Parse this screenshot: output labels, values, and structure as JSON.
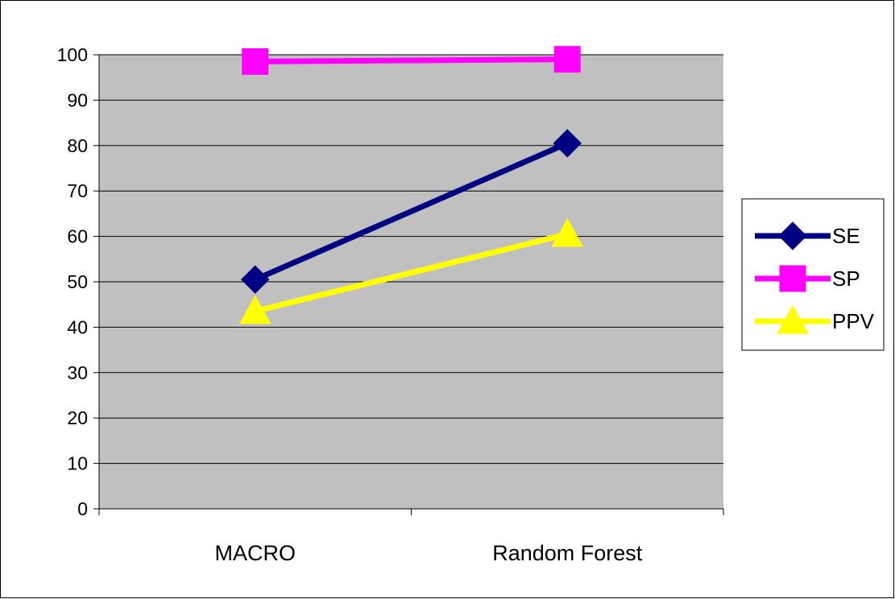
{
  "chart_data": {
    "type": "line",
    "categories": [
      "MACRO",
      "Random Forest"
    ],
    "series": [
      {
        "name": "SE",
        "values": [
          50.5,
          80.5
        ],
        "color": "#000080",
        "marker": "diamond"
      },
      {
        "name": "SP",
        "values": [
          98.5,
          99
        ],
        "color": "#FF00FF",
        "marker": "square"
      },
      {
        "name": "PPV",
        "values": [
          43.5,
          60.5
        ],
        "color": "#FFFF00",
        "marker": "triangle"
      }
    ],
    "ylim": [
      0,
      100
    ],
    "yticks": [
      "0",
      "10",
      "20",
      "30",
      "40",
      "50",
      "60",
      "70",
      "80",
      "90",
      "100"
    ],
    "grid": true,
    "plot_background": "#C0C0C0",
    "legend": "right"
  }
}
